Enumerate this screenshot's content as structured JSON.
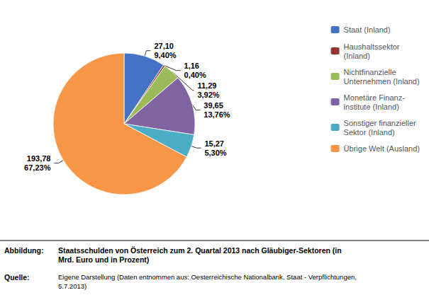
{
  "chart_data": {
    "type": "pie",
    "categories": [
      "Staat (Inland)",
      "Haushaltssektor\n(Inland)",
      "Nichtfinanzielle\nUnternehmen (Inland)",
      "Monetäre Finanz-\ninstitute (Inland)",
      "Sonstiger finanzieller\nSektor (Inland)",
      "Übrige Welt (Ausland)"
    ],
    "values": [
      27.1,
      1.16,
      11.29,
      39.65,
      15.27,
      193.78
    ],
    "value_labels": [
      "27,10\n9,40%",
      "1,16\n0,40%",
      "11,29\n3,92%",
      "39,65\n13,76%",
      "15,27\n5,30%",
      "193,78\n67,23%"
    ],
    "colors": [
      "#4472C4",
      "#943634",
      "#9BBB59",
      "#8064A2",
      "#4BACC6",
      "#F79646"
    ],
    "data_labels": true,
    "legend": "upper right",
    "annotations": [
      "Abbildung:",
      "Staatsschulden von Österreich zum 2. Quartal 2013 nach Gläubiger-Sektoren (in\nMrd. Euro und in Prozent)",
      "Quelle:",
      "Eigene Darstellung (Daten entnommen aus: Oesterreichische Nationalbank, Staat - Verpflichtungen,\n5.7.2013)"
    ]
  }
}
